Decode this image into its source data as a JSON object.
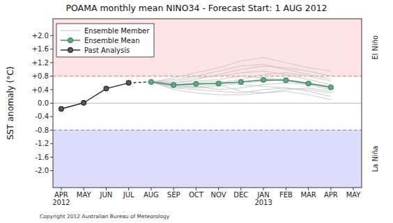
{
  "chart_data": {
    "type": "line",
    "title": "POAMA monthly mean NINO34 - Forecast Start: 1 AUG 2012",
    "y_label": "SST anomaly (°C)",
    "footnote": "Copyright 2012 Australian Bureau of Meteorology",
    "categories": [
      "APR",
      "MAY",
      "JUN",
      "JUL",
      "AUG",
      "SEP",
      "OCT",
      "NOV",
      "DEC",
      "JAN",
      "FEB",
      "MAR",
      "APR",
      "MAY"
    ],
    "x_sublabels": [
      "2012",
      null,
      null,
      null,
      null,
      null,
      null,
      null,
      null,
      "2013",
      null,
      null,
      null,
      null
    ],
    "ylim": [
      -2.5,
      2.5
    ],
    "yticks": [
      {
        "value": -2.0,
        "label": "-2.0"
      },
      {
        "value": -1.6,
        "label": "-1.6"
      },
      {
        "value": -1.2,
        "label": "-1.2"
      },
      {
        "value": -0.8,
        "label": "-0.8"
      },
      {
        "value": -0.4,
        "label": "-0.4"
      },
      {
        "value": 0.0,
        "label": "0.0"
      },
      {
        "value": 0.4,
        "label": "+0.4"
      },
      {
        "value": 0.8,
        "label": "+0.8"
      },
      {
        "value": 1.2,
        "label": "+1.2"
      },
      {
        "value": 1.6,
        "label": "+1.6"
      },
      {
        "value": 2.0,
        "label": "+2.0"
      }
    ],
    "reference_line": 0.0,
    "regions": [
      {
        "label": "El Niño",
        "range": [
          0.8,
          2.5
        ],
        "color": "#fde3e3",
        "line_color": "#f08a8a"
      },
      {
        "label": "La Niña",
        "range": [
          -2.5,
          -0.8
        ],
        "color": "#dcdcfb",
        "line_color": "#8a8ad0"
      }
    ],
    "legend": "upper-left",
    "series": [
      {
        "name": "Ensemble Member",
        "color": "#c4c4c4",
        "type": "line",
        "marker": "none",
        "line_style": "solid",
        "members": [
          [
            null,
            null,
            null,
            null,
            0.63,
            0.75,
            0.9,
            1.05,
            1.25,
            1.35,
            1.2,
            1.05,
            0.95,
            null
          ],
          [
            null,
            null,
            null,
            null,
            0.63,
            0.6,
            0.7,
            0.85,
            1.0,
            1.1,
            1.05,
            0.95,
            0.8,
            null
          ],
          [
            null,
            null,
            null,
            null,
            0.63,
            0.5,
            0.55,
            0.6,
            0.7,
            0.85,
            0.9,
            0.8,
            0.65,
            null
          ],
          [
            null,
            null,
            null,
            null,
            0.63,
            0.45,
            0.4,
            0.35,
            0.3,
            0.4,
            0.45,
            0.4,
            0.3,
            null
          ],
          [
            null,
            null,
            null,
            null,
            0.63,
            0.55,
            0.6,
            0.65,
            0.55,
            0.5,
            0.45,
            0.35,
            0.2,
            null
          ],
          [
            null,
            null,
            null,
            null,
            0.63,
            0.4,
            0.3,
            0.25,
            0.25,
            0.3,
            0.35,
            0.25,
            0.1,
            null
          ],
          [
            null,
            null,
            null,
            null,
            0.63,
            0.65,
            0.75,
            0.8,
            0.9,
            0.95,
            0.85,
            0.7,
            0.55,
            null
          ],
          [
            null,
            null,
            null,
            null,
            0.63,
            0.5,
            0.45,
            0.5,
            0.6,
            0.65,
            0.7,
            0.6,
            0.45,
            null
          ],
          [
            null,
            null,
            null,
            null,
            0.63,
            0.7,
            0.8,
            0.95,
            1.1,
            1.15,
            1.0,
            0.85,
            0.7,
            null
          ],
          [
            null,
            null,
            null,
            null,
            0.63,
            0.45,
            0.5,
            0.4,
            0.45,
            0.55,
            0.6,
            0.55,
            0.4,
            null
          ],
          [
            null,
            null,
            null,
            null,
            0.63,
            0.6,
            0.65,
            0.7,
            0.8,
            0.75,
            0.7,
            0.6,
            0.5,
            null
          ],
          [
            null,
            null,
            null,
            null,
            0.63,
            0.52,
            0.48,
            0.55,
            0.35,
            0.3,
            0.4,
            0.45,
            0.35,
            null
          ]
        ]
      },
      {
        "name": "Ensemble Mean",
        "color": "#2e8b57",
        "type": "line",
        "marker": "circle",
        "line_style": "solid",
        "values": [
          null,
          null,
          null,
          null,
          0.63,
          0.54,
          0.57,
          0.58,
          0.63,
          0.69,
          0.68,
          0.58,
          0.47,
          null
        ]
      },
      {
        "name": "Past Analysis",
        "color": "#222222",
        "type": "line",
        "marker": "circle",
        "line_style": "solid",
        "values": [
          -0.17,
          0.01,
          0.43,
          0.6,
          null,
          null,
          null,
          null,
          null,
          null,
          null,
          null,
          null,
          null
        ]
      }
    ]
  }
}
